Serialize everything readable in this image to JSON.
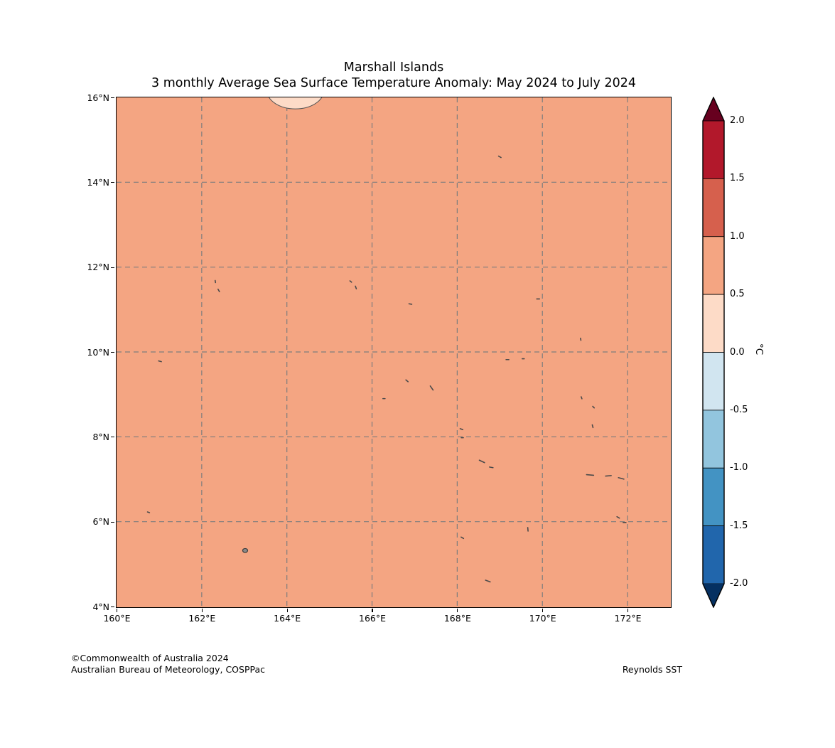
{
  "title": {
    "line1": "Marshall Islands",
    "line2": "3 monthly Average Sea Surface Temperature Anomaly: May 2024 to July 2024"
  },
  "footer": {
    "copyright": "©Commonwealth of Australia 2024",
    "organisation": "Australian Bureau of Meteorology, COSPPac",
    "source": "Reynolds SST"
  },
  "colorbar": {
    "unit": "°C",
    "tick_labels": [
      "2.0",
      "1.5",
      "1.0",
      "0.5",
      "0.0",
      "-0.5",
      "-1.0",
      "-1.5",
      "-2.0"
    ],
    "segment_colors_top_to_bottom": [
      "#b2182b",
      "#d6604d",
      "#f4a582",
      "#fddbc7",
      "#d1e5f0",
      "#92c5de",
      "#4393c3",
      "#2166ac"
    ],
    "over_arrow_color": "#67001f",
    "under_arrow_color": "#053061"
  },
  "chart_data": {
    "type": "heatmap",
    "title": "Marshall Islands",
    "subtitle": "3 monthly Average Sea Surface Temperature Anomaly: May 2024 to July 2024",
    "xlabel": "",
    "ylabel": "",
    "units": "°C",
    "grid": {
      "visible": true,
      "style": "dashed",
      "color": "#7d7d7d"
    },
    "x_axis": {
      "range": [
        160,
        173
      ],
      "ticks": [
        160,
        162,
        164,
        166,
        168,
        170,
        172
      ],
      "tick_labels": [
        "160°E",
        "162°E",
        "164°E",
        "166°E",
        "168°E",
        "170°E",
        "172°E"
      ]
    },
    "y_axis": {
      "range": [
        4,
        16
      ],
      "ticks": [
        4,
        6,
        8,
        10,
        12,
        14,
        16
      ],
      "tick_labels": [
        "4°N",
        "6°N",
        "8°N",
        "10°N",
        "12°N",
        "14°N",
        "16°N"
      ]
    },
    "levels": [
      -2.0,
      -1.5,
      -1.0,
      -0.5,
      0.0,
      0.5,
      1.0,
      1.5,
      2.0
    ],
    "field": {
      "dominant_anomaly_range": "+0.5 to +1.0 °C over entire map region",
      "fill_color": "#f4a582",
      "low_region": {
        "description": "anomaly +0.0 to +0.5 °C patch clipped at northern edge",
        "lon": 164.2,
        "lat": 16.15,
        "lon_radius": 0.66,
        "lat_radius": 0.42,
        "color": "#fddbc7"
      }
    },
    "islands": [
      [
        169.0,
        14.6,
        4,
        30
      ],
      [
        162.32,
        11.66,
        3,
        80
      ],
      [
        162.4,
        11.45,
        4,
        60
      ],
      [
        165.5,
        11.66,
        3,
        40
      ],
      [
        165.62,
        11.52,
        4,
        70
      ],
      [
        166.9,
        11.13,
        4,
        10
      ],
      [
        169.9,
        11.25,
        4,
        0
      ],
      [
        170.9,
        10.3,
        3,
        80
      ],
      [
        161.02,
        9.78,
        4,
        15
      ],
      [
        169.18,
        9.82,
        4,
        0
      ],
      [
        169.55,
        9.84,
        3,
        0
      ],
      [
        166.82,
        9.32,
        4,
        40
      ],
      [
        167.4,
        9.15,
        7,
        55
      ],
      [
        166.28,
        8.9,
        3,
        0
      ],
      [
        170.92,
        8.92,
        3,
        70
      ],
      [
        171.2,
        8.7,
        3,
        45
      ],
      [
        171.18,
        8.25,
        4,
        75
      ],
      [
        168.1,
        8.18,
        4,
        20
      ],
      [
        168.12,
        7.98,
        3,
        0
      ],
      [
        168.58,
        7.42,
        8,
        25
      ],
      [
        168.8,
        7.28,
        5,
        10
      ],
      [
        171.12,
        7.1,
        10,
        5
      ],
      [
        171.55,
        7.08,
        8,
        175
      ],
      [
        171.85,
        7.02,
        8,
        15
      ],
      [
        171.78,
        6.1,
        4,
        30
      ],
      [
        171.93,
        5.98,
        4,
        0
      ],
      [
        160.75,
        6.22,
        3,
        20
      ],
      [
        169.66,
        5.82,
        5,
        85
      ],
      [
        168.12,
        5.62,
        4,
        30
      ],
      [
        168.72,
        4.6,
        7,
        20
      ]
    ],
    "island_patches": [
      [
        163.02,
        5.32,
        3.5
      ]
    ]
  }
}
